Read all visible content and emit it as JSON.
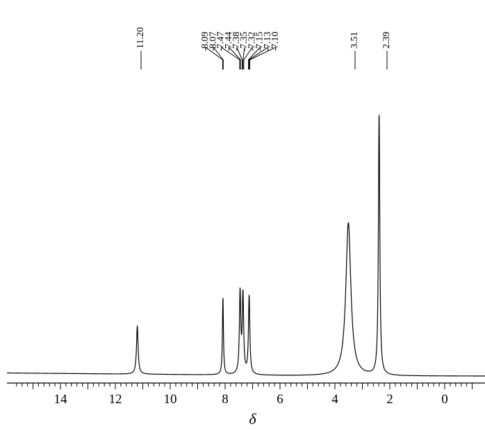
{
  "chart_data": {
    "type": "line",
    "title": "",
    "xlabel": "δ",
    "ylabel": "",
    "xlim": [
      15.7,
      -1.0
    ],
    "x_reversed": true,
    "x_tick_labels": [
      "14",
      "12",
      "10",
      "8",
      "6",
      "4",
      "2",
      "0"
    ],
    "x_tick_values": [
      14,
      12,
      10,
      8,
      6,
      4,
      2,
      0
    ],
    "minor_tick_step": 0.2,
    "grid": false,
    "legend": "none",
    "peak_labels": [
      {
        "text": "11.20",
        "value": 11.2
      },
      {
        "text": "8.09",
        "value": 8.09
      },
      {
        "text": "8.07",
        "value": 8.07
      },
      {
        "text": "7.47",
        "value": 7.47
      },
      {
        "text": "7.44",
        "value": 7.44
      },
      {
        "text": "7.38",
        "value": 7.38
      },
      {
        "text": "7.35",
        "value": 7.35
      },
      {
        "text": "7.32",
        "value": 7.32
      },
      {
        "text": "7.15",
        "value": 7.15
      },
      {
        "text": "7.13",
        "value": 7.13
      },
      {
        "text": "7.10",
        "value": 7.1
      },
      {
        "text": "3.51",
        "value": 3.51
      },
      {
        "text": "2.39",
        "value": 2.39
      }
    ],
    "peaks": [
      {
        "shift": 11.2,
        "intensity": 0.184,
        "width": 0.035
      },
      {
        "shift": 8.08,
        "intensity": 0.296,
        "width": 0.022
      },
      {
        "shift": 7.455,
        "intensity": 0.31,
        "width": 0.03
      },
      {
        "shift": 7.35,
        "intensity": 0.3,
        "width": 0.03
      },
      {
        "shift": 7.125,
        "intensity": 0.3,
        "width": 0.03
      },
      {
        "shift": 3.51,
        "intensity": 0.586,
        "width": 0.11
      },
      {
        "shift": 2.39,
        "intensity": 1.0,
        "width": 0.03
      }
    ],
    "baseline": 0.0
  }
}
